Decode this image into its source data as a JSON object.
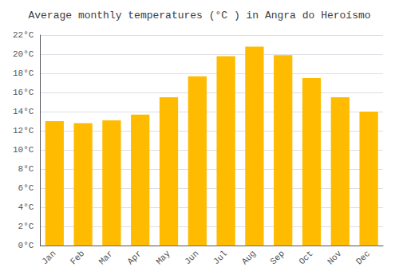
{
  "chart_data": {
    "type": "bar",
    "title": "Average monthly temperatures (°C ) in Angra do Heroísmo",
    "categories": [
      "Jan",
      "Feb",
      "Mar",
      "Apr",
      "May",
      "Jun",
      "Jul",
      "Aug",
      "Sep",
      "Oct",
      "Nov",
      "Dec"
    ],
    "values": [
      13.0,
      12.8,
      13.1,
      13.7,
      15.5,
      17.7,
      19.8,
      20.8,
      19.9,
      17.5,
      15.5,
      14.0
    ],
    "color": "#FFBB00",
    "ylim": [
      0,
      22
    ],
    "yticks": [
      {
        "value": 0,
        "label": "0°C"
      },
      {
        "value": 2,
        "label": "2°C"
      },
      {
        "value": 4,
        "label": "4°C"
      },
      {
        "value": 6,
        "label": "6°C"
      },
      {
        "value": 8,
        "label": "8°C"
      },
      {
        "value": 10,
        "label": "10°C"
      },
      {
        "value": 12,
        "label": "12°C"
      },
      {
        "value": 14,
        "label": "14°C"
      },
      {
        "value": 16,
        "label": "16°C"
      },
      {
        "value": 18,
        "label": "18°C"
      },
      {
        "value": 20,
        "label": "20°C"
      },
      {
        "value": 22,
        "label": "22°C"
      }
    ],
    "grid": true
  }
}
